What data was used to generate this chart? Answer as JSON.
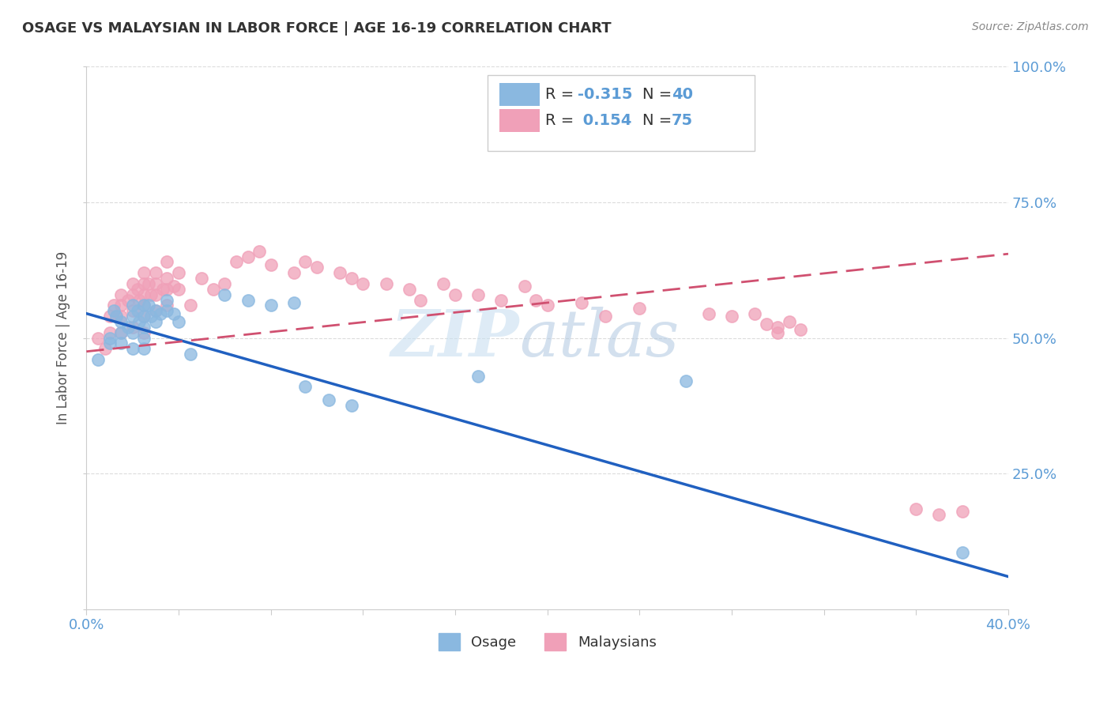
{
  "title": "OSAGE VS MALAYSIAN IN LABOR FORCE | AGE 16-19 CORRELATION CHART",
  "source": "Source: ZipAtlas.com",
  "ylabel_label": "In Labor Force | Age 16-19",
  "xlim": [
    0.0,
    0.4
  ],
  "ylim": [
    0.0,
    1.0
  ],
  "osage_color": "#8ab8e0",
  "malaysian_color": "#f0a0b8",
  "osage_line_color": "#2060c0",
  "malaysian_line_color": "#d05070",
  "watermark_zip": "ZIP",
  "watermark_atlas": "atlas",
  "osage_x": [
    0.005,
    0.01,
    0.01,
    0.012,
    0.013,
    0.015,
    0.015,
    0.015,
    0.018,
    0.02,
    0.02,
    0.02,
    0.02,
    0.022,
    0.023,
    0.025,
    0.025,
    0.025,
    0.025,
    0.025,
    0.027,
    0.028,
    0.03,
    0.03,
    0.032,
    0.035,
    0.035,
    0.038,
    0.04,
    0.045,
    0.06,
    0.07,
    0.08,
    0.09,
    0.095,
    0.105,
    0.115,
    0.17,
    0.26,
    0.38
  ],
  "osage_y": [
    0.46,
    0.5,
    0.49,
    0.55,
    0.54,
    0.53,
    0.51,
    0.49,
    0.52,
    0.56,
    0.54,
    0.51,
    0.48,
    0.55,
    0.53,
    0.56,
    0.54,
    0.52,
    0.5,
    0.48,
    0.56,
    0.54,
    0.55,
    0.53,
    0.545,
    0.57,
    0.55,
    0.545,
    0.53,
    0.47,
    0.58,
    0.57,
    0.56,
    0.565,
    0.41,
    0.385,
    0.375,
    0.43,
    0.42,
    0.105
  ],
  "malaysian_x": [
    0.005,
    0.008,
    0.01,
    0.01,
    0.012,
    0.013,
    0.015,
    0.015,
    0.015,
    0.015,
    0.018,
    0.02,
    0.02,
    0.02,
    0.02,
    0.022,
    0.023,
    0.025,
    0.025,
    0.025,
    0.025,
    0.025,
    0.025,
    0.027,
    0.028,
    0.03,
    0.03,
    0.03,
    0.03,
    0.033,
    0.035,
    0.035,
    0.035,
    0.035,
    0.038,
    0.04,
    0.04,
    0.045,
    0.05,
    0.055,
    0.06,
    0.065,
    0.07,
    0.075,
    0.08,
    0.09,
    0.095,
    0.1,
    0.11,
    0.115,
    0.12,
    0.13,
    0.14,
    0.145,
    0.155,
    0.16,
    0.17,
    0.18,
    0.19,
    0.195,
    0.2,
    0.215,
    0.225,
    0.24,
    0.27,
    0.28,
    0.29,
    0.295,
    0.3,
    0.3,
    0.305,
    0.31,
    0.36,
    0.37,
    0.38
  ],
  "malaysian_y": [
    0.5,
    0.48,
    0.54,
    0.51,
    0.56,
    0.54,
    0.58,
    0.56,
    0.54,
    0.51,
    0.57,
    0.6,
    0.58,
    0.55,
    0.52,
    0.59,
    0.57,
    0.62,
    0.6,
    0.58,
    0.56,
    0.54,
    0.51,
    0.6,
    0.58,
    0.62,
    0.6,
    0.58,
    0.55,
    0.59,
    0.64,
    0.61,
    0.59,
    0.56,
    0.595,
    0.62,
    0.59,
    0.56,
    0.61,
    0.59,
    0.6,
    0.64,
    0.65,
    0.66,
    0.635,
    0.62,
    0.64,
    0.63,
    0.62,
    0.61,
    0.6,
    0.6,
    0.59,
    0.57,
    0.6,
    0.58,
    0.58,
    0.57,
    0.595,
    0.57,
    0.56,
    0.565,
    0.54,
    0.555,
    0.545,
    0.54,
    0.545,
    0.525,
    0.52,
    0.51,
    0.53,
    0.515,
    0.185,
    0.175,
    0.18
  ],
  "osage_trend_x0": 0.0,
  "osage_trend_y0": 0.545,
  "osage_trend_x1": 0.4,
  "osage_trend_y1": 0.06,
  "malaysian_trend_x0": 0.0,
  "malaysian_trend_y0": 0.475,
  "malaysian_trend_x1": 0.4,
  "malaysian_trend_y1": 0.655
}
